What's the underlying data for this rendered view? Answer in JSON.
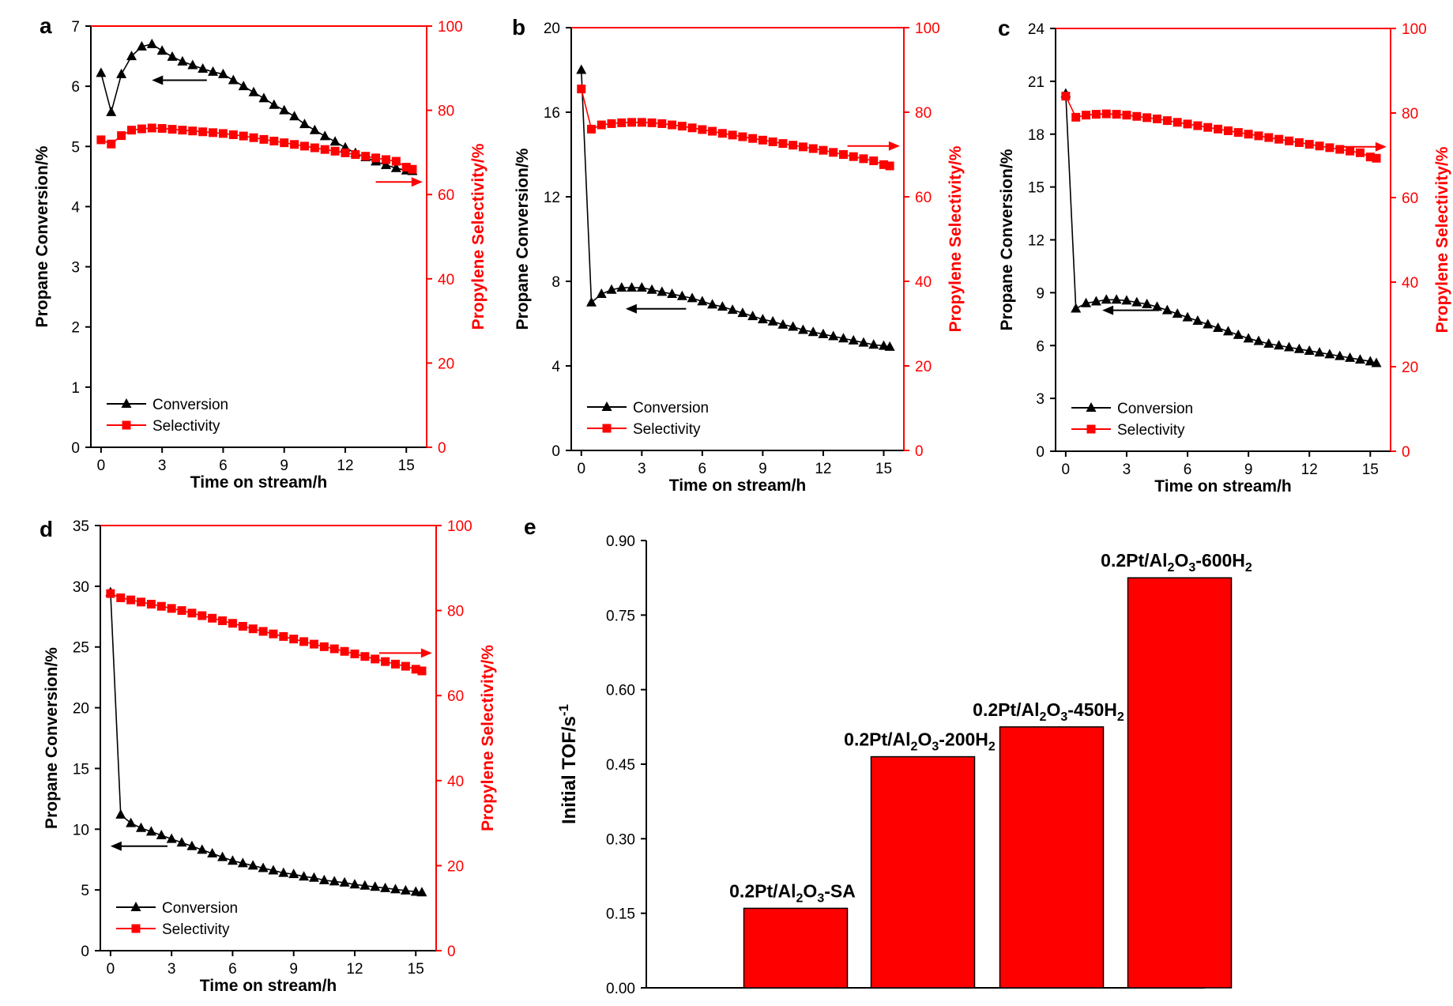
{
  "colors": {
    "conversion": "#000000",
    "selectivity": "#ff0000",
    "bar": "#ff0000",
    "axis": "#000000"
  },
  "chart_data": [
    {
      "panel": "a",
      "type": "line",
      "xlabel": "Time on stream/h",
      "ylabel": "Propane Conversion/%",
      "y2label": "Propylene Selectivity/%",
      "xlim": [
        -0.5,
        16
      ],
      "xticks": [
        0,
        3,
        6,
        9,
        12,
        15
      ],
      "ylim": [
        0,
        7
      ],
      "yticks": [
        0,
        1,
        2,
        3,
        4,
        5,
        6,
        7
      ],
      "y2lim": [
        0,
        100
      ],
      "y2ticks": [
        0,
        20,
        40,
        60,
        80,
        100
      ],
      "legend": {
        "conversion": "Conversion",
        "selectivity": "Selectivity"
      },
      "conv_arrow": {
        "y": 6.1,
        "x_from": 5.2,
        "x_to": 2.5
      },
      "sel_arrow": {
        "y": 63,
        "x_from": 13.5,
        "x_to": 15.8
      },
      "series": [
        {
          "name": "Conversion",
          "axis": "left",
          "x": [
            0,
            0.5,
            1,
            1.5,
            2,
            2.5,
            3,
            3.5,
            4,
            4.5,
            5,
            5.5,
            6,
            6.5,
            7,
            7.5,
            8,
            8.5,
            9,
            9.5,
            10,
            10.5,
            11,
            11.5,
            12,
            12.5,
            13,
            13.5,
            14,
            14.5,
            15,
            15.3
          ],
          "values": [
            6.22,
            5.57,
            6.2,
            6.5,
            6.66,
            6.7,
            6.59,
            6.49,
            6.41,
            6.35,
            6.29,
            6.24,
            6.2,
            6.1,
            6.0,
            5.9,
            5.8,
            5.69,
            5.6,
            5.5,
            5.37,
            5.27,
            5.17,
            5.08,
            4.98,
            4.89,
            4.82,
            4.75,
            4.69,
            4.64,
            4.6,
            4.59
          ]
        },
        {
          "name": "Selectivity",
          "axis": "right",
          "x": [
            0,
            0.5,
            1,
            1.5,
            2,
            2.5,
            3,
            3.5,
            4,
            4.5,
            5,
            5.5,
            6,
            6.5,
            7,
            7.5,
            8,
            8.5,
            9,
            9.5,
            10,
            10.5,
            11,
            11.5,
            12,
            12.5,
            13,
            13.5,
            14,
            14.5,
            15,
            15.3
          ],
          "values": [
            73,
            72,
            74,
            75.3,
            75.6,
            75.8,
            75.7,
            75.5,
            75.3,
            75.1,
            74.9,
            74.7,
            74.5,
            74.2,
            73.9,
            73.5,
            73.1,
            72.7,
            72.3,
            71.9,
            71.5,
            71.1,
            70.7,
            70.3,
            69.9,
            69.5,
            69.1,
            68.7,
            68.3,
            67.9,
            66.5,
            66.0
          ]
        }
      ]
    },
    {
      "panel": "b",
      "type": "line",
      "xlabel": "Time on stream/h",
      "ylabel": "Propane Conversion/%",
      "y2label": "Propylene Selectivity/%",
      "xlim": [
        -0.5,
        16
      ],
      "xticks": [
        0,
        3,
        6,
        9,
        12,
        15
      ],
      "ylim": [
        0,
        20
      ],
      "yticks": [
        0,
        4,
        8,
        12,
        16,
        20
      ],
      "y2lim": [
        0,
        100
      ],
      "y2ticks": [
        0,
        20,
        40,
        60,
        80,
        100
      ],
      "legend": {
        "conversion": "Conversion",
        "selectivity": "Selectivity"
      },
      "conv_arrow": {
        "y": 6.7,
        "x_from": 5.2,
        "x_to": 2.2
      },
      "sel_arrow": {
        "y": 72,
        "x_from": 13.2,
        "x_to": 15.8
      },
      "series": [
        {
          "name": "Conversion",
          "axis": "left",
          "x": [
            0,
            0.5,
            1,
            1.5,
            2,
            2.5,
            3,
            3.5,
            4,
            4.5,
            5,
            5.5,
            6,
            6.5,
            7,
            7.5,
            8,
            8.5,
            9,
            9.5,
            10,
            10.5,
            11,
            11.5,
            12,
            12.5,
            13,
            13.5,
            14,
            14.5,
            15,
            15.3
          ],
          "values": [
            18.0,
            7.0,
            7.4,
            7.6,
            7.7,
            7.7,
            7.7,
            7.6,
            7.5,
            7.4,
            7.3,
            7.2,
            7.05,
            6.9,
            6.8,
            6.65,
            6.5,
            6.35,
            6.2,
            6.1,
            5.95,
            5.85,
            5.7,
            5.6,
            5.5,
            5.4,
            5.3,
            5.2,
            5.1,
            5.0,
            4.95,
            4.9
          ]
        },
        {
          "name": "Selectivity",
          "axis": "right",
          "x": [
            0,
            0.5,
            1,
            1.5,
            2,
            2.5,
            3,
            3.5,
            4,
            4.5,
            5,
            5.5,
            6,
            6.5,
            7,
            7.5,
            8,
            8.5,
            9,
            9.5,
            10,
            10.5,
            11,
            11.5,
            12,
            12.5,
            13,
            13.5,
            14,
            14.5,
            15,
            15.3
          ],
          "values": [
            85.5,
            76,
            77,
            77.3,
            77.5,
            77.6,
            77.6,
            77.5,
            77.3,
            77.0,
            76.7,
            76.3,
            75.9,
            75.5,
            75.0,
            74.6,
            74.2,
            73.8,
            73.4,
            73.0,
            72.6,
            72.2,
            71.8,
            71.4,
            71.0,
            70.5,
            70.0,
            69.5,
            69.0,
            68.5,
            67.6,
            67.3
          ]
        }
      ]
    },
    {
      "panel": "c",
      "type": "line",
      "xlabel": "Time on stream/h",
      "ylabel": "Propane Conversion/%",
      "y2label": "Propylene Selectivity/%",
      "xlim": [
        -0.5,
        16
      ],
      "xticks": [
        0,
        3,
        6,
        9,
        12,
        15
      ],
      "ylim": [
        0,
        24
      ],
      "yticks": [
        0,
        3,
        6,
        9,
        12,
        15,
        18,
        21,
        24
      ],
      "y2lim": [
        0,
        100
      ],
      "y2ticks": [
        0,
        20,
        40,
        60,
        80,
        100
      ],
      "legend": {
        "conversion": "Conversion",
        "selectivity": "Selectivity"
      },
      "conv_arrow": {
        "y": 8.0,
        "x_from": 4.6,
        "x_to": 1.8
      },
      "sel_arrow": {
        "y": 72,
        "x_from": 13.5,
        "x_to": 15.8
      },
      "series": [
        {
          "name": "Conversion",
          "axis": "left",
          "x": [
            0,
            0.5,
            1,
            1.5,
            2,
            2.5,
            3,
            3.5,
            4,
            4.5,
            5,
            5.5,
            6,
            6.5,
            7,
            7.5,
            8,
            8.5,
            9,
            9.5,
            10,
            10.5,
            11,
            11.5,
            12,
            12.5,
            13,
            13.5,
            14,
            14.5,
            15,
            15.3
          ],
          "values": [
            20.3,
            8.1,
            8.4,
            8.5,
            8.6,
            8.6,
            8.55,
            8.45,
            8.35,
            8.2,
            8.0,
            7.8,
            7.6,
            7.4,
            7.2,
            7.0,
            6.8,
            6.6,
            6.4,
            6.25,
            6.1,
            6.0,
            5.9,
            5.8,
            5.7,
            5.6,
            5.5,
            5.4,
            5.3,
            5.2,
            5.1,
            5.0
          ]
        },
        {
          "name": "Selectivity",
          "axis": "right",
          "x": [
            0,
            0.5,
            1,
            1.5,
            2,
            2.5,
            3,
            3.5,
            4,
            4.5,
            5,
            5.5,
            6,
            6.5,
            7,
            7.5,
            8,
            8.5,
            9,
            9.5,
            10,
            10.5,
            11,
            11.5,
            12,
            12.5,
            13,
            13.5,
            14,
            14.5,
            15,
            15.3
          ],
          "values": [
            84,
            79,
            79.5,
            79.7,
            79.8,
            79.7,
            79.5,
            79.2,
            78.9,
            78.6,
            78.2,
            77.8,
            77.4,
            77.0,
            76.6,
            76.2,
            75.8,
            75.4,
            75.0,
            74.6,
            74.2,
            73.8,
            73.4,
            73.0,
            72.6,
            72.2,
            71.8,
            71.4,
            71.0,
            70.6,
            69.6,
            69.3
          ]
        }
      ]
    },
    {
      "panel": "d",
      "type": "line",
      "xlabel": "Time on stream/h",
      "ylabel": "Propane Conversion/%",
      "y2label": "Propylene Selectivity/%",
      "xlim": [
        -0.5,
        16
      ],
      "xticks": [
        0,
        3,
        6,
        9,
        12,
        15
      ],
      "ylim": [
        0,
        35
      ],
      "yticks": [
        0,
        5,
        10,
        15,
        20,
        25,
        30,
        35
      ],
      "y2lim": [
        0,
        100
      ],
      "y2ticks": [
        0,
        20,
        40,
        60,
        80,
        100
      ],
      "legend": {
        "conversion": "Conversion",
        "selectivity": "Selectivity"
      },
      "conv_arrow": {
        "y": 8.6,
        "x_from": 2.8,
        "x_to": 0.0
      },
      "sel_arrow": {
        "y": 70,
        "x_from": 13.2,
        "x_to": 15.8
      },
      "series": [
        {
          "name": "Conversion",
          "axis": "left",
          "x": [
            0,
            0.5,
            1,
            1.5,
            2,
            2.5,
            3,
            3.5,
            4,
            4.5,
            5,
            5.5,
            6,
            6.5,
            7,
            7.5,
            8,
            8.5,
            9,
            9.5,
            10,
            10.5,
            11,
            11.5,
            12,
            12.5,
            13,
            13.5,
            14,
            14.5,
            15,
            15.3
          ],
          "values": [
            29.5,
            11.2,
            10.5,
            10.1,
            9.8,
            9.5,
            9.2,
            8.9,
            8.6,
            8.3,
            8.0,
            7.7,
            7.4,
            7.2,
            7.0,
            6.8,
            6.6,
            6.4,
            6.3,
            6.1,
            6.0,
            5.8,
            5.7,
            5.6,
            5.45,
            5.35,
            5.25,
            5.15,
            5.05,
            4.95,
            4.85,
            4.8
          ]
        },
        {
          "name": "Selectivity",
          "axis": "right",
          "x": [
            0,
            0.5,
            1,
            1.5,
            2,
            2.5,
            3,
            3.5,
            4,
            4.5,
            5,
            5.5,
            6,
            6.5,
            7,
            7.5,
            8,
            8.5,
            9,
            9.5,
            10,
            10.5,
            11,
            11.5,
            12,
            12.5,
            13,
            13.5,
            14,
            14.5,
            15,
            15.3
          ],
          "values": [
            84,
            83,
            82.5,
            82,
            81.5,
            81,
            80.5,
            80,
            79.4,
            78.8,
            78.2,
            77.6,
            77,
            76.3,
            75.7,
            75.1,
            74.5,
            73.9,
            73.3,
            72.7,
            72.1,
            71.5,
            71,
            70.4,
            69.8,
            69.2,
            68.6,
            68,
            67.4,
            66.9,
            66.2,
            65.8
          ]
        }
      ]
    },
    {
      "panel": "e",
      "type": "bar",
      "ylabel": "Initial TOF/s-1",
      "ylim": [
        0,
        0.9
      ],
      "yticks": [
        "0.00",
        "0.15",
        "0.30",
        "0.45",
        "0.60",
        "0.75",
        "0.90"
      ],
      "categories": [
        {
          "prefix": "0.2Pt/Al",
          "sub1": "2",
          "mid": "O",
          "sub2": "3",
          "suffix": "-SA",
          "sub3": ""
        },
        {
          "prefix": "0.2Pt/Al",
          "sub1": "2",
          "mid": "O",
          "sub2": "3",
          "suffix": "-200H",
          "sub3": "2"
        },
        {
          "prefix": "0.2Pt/Al",
          "sub1": "2",
          "mid": "O",
          "sub2": "3",
          "suffix": "-450H",
          "sub3": "2"
        },
        {
          "prefix": "0.2Pt/Al",
          "sub1": "2",
          "mid": "O",
          "sub2": "3",
          "suffix": "-600H",
          "sub3": "2"
        }
      ],
      "values": [
        0.16,
        0.465,
        0.525,
        0.825
      ]
    }
  ]
}
